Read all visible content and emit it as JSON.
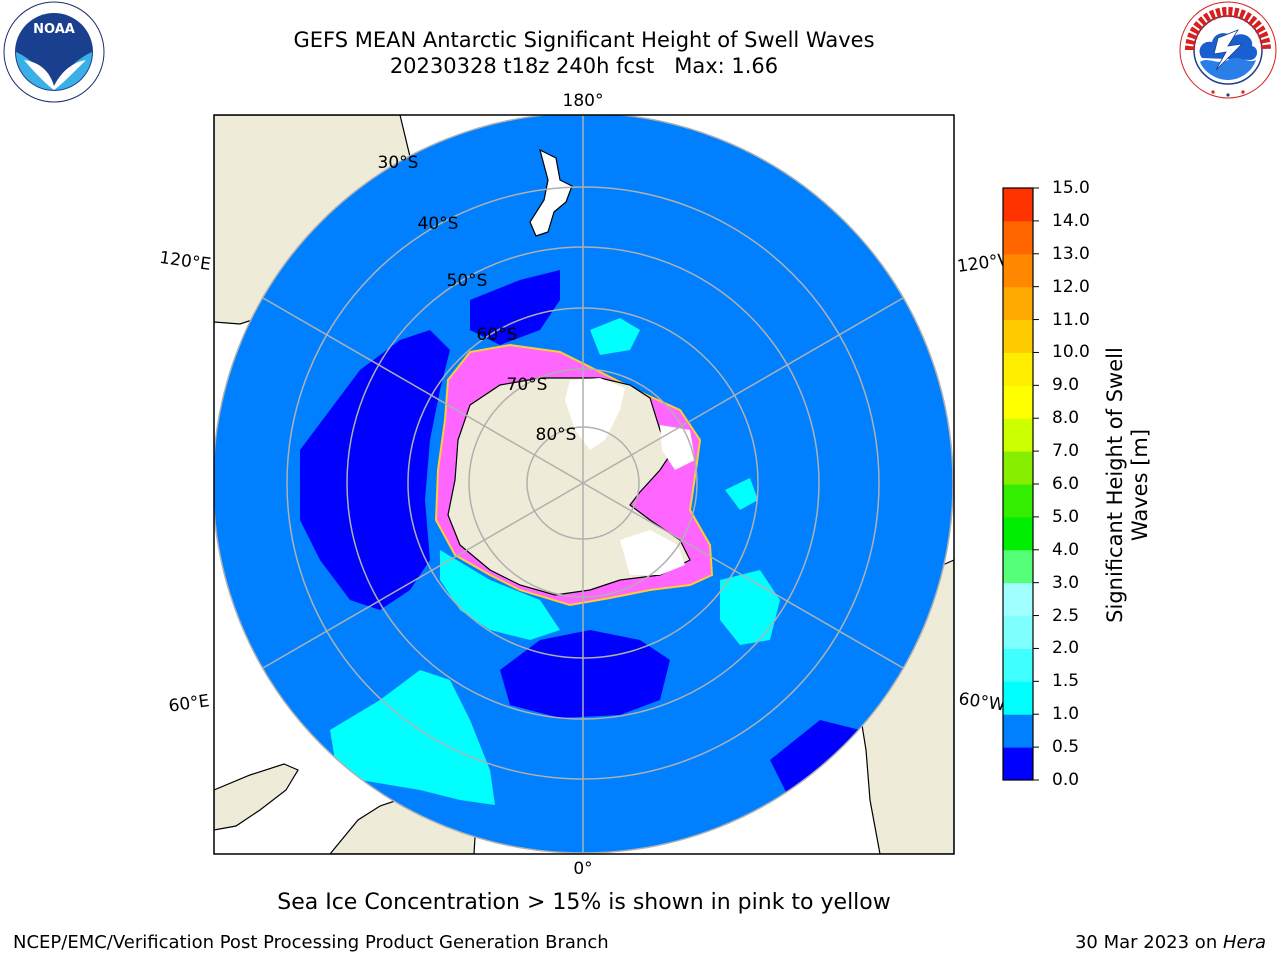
{
  "title": {
    "line1": "GEFS MEAN Antarctic Significant Height of Swell Waves",
    "line2": "20230328 t18z 240h fcst   Max: 1.66"
  },
  "map": {
    "projection": "south polar stereographic",
    "latitude_labels": [
      "30°S",
      "40°S",
      "50°S",
      "60°S",
      "70°S",
      "80°S"
    ],
    "longitude_labels": {
      "top": "180°",
      "left_upper": "120°E",
      "right_upper": "120°W",
      "left_lower": "60°E",
      "right_lower": "60°W",
      "bottom": "0°"
    },
    "colors": {
      "land": "#eeecd8",
      "ocean_0_5_1_0": "#0080ff",
      "ocean_0_0_5": "#0000ff",
      "swell_1_0_1_5": "#00ffff",
      "sea_ice": "#ff66ff",
      "grid": "#b0b0b0"
    }
  },
  "colorbar": {
    "title": "Significant Height of Swell Waves [m]",
    "ticks": [
      "0.0",
      "0.5",
      "1.0",
      "1.5",
      "2.0",
      "2.5",
      "3.0",
      "4.0",
      "5.0",
      "6.0",
      "7.0",
      "8.0",
      "9.0",
      "10.0",
      "11.0",
      "12.0",
      "13.0",
      "14.0",
      "15.0"
    ],
    "colors": [
      "#0000ff",
      "#0080ff",
      "#00ffff",
      "#40ffff",
      "#80ffff",
      "#a0ffff",
      "#55ff77",
      "#00ee00",
      "#33ee00",
      "#88ee00",
      "#ccff00",
      "#ffff00",
      "#ffee00",
      "#ffcc00",
      "#ffaa00",
      "#ff8800",
      "#ff6600",
      "#ff3300",
      "#ff0000"
    ]
  },
  "logos": {
    "left": "NOAA",
    "left_ring_text": "NATIONAL OCEANIC AND ATMOSPHERIC ADMINISTRATION · U.S. DEPARTMENT OF COMMERCE",
    "right_ring_text": "NATIONAL WEATHER SERVICE"
  },
  "caption": "Sea Ice Concentration > 15% is shown in pink to yellow",
  "footer": {
    "left": "NCEP/EMC/Verification Post Processing Product Generation Branch",
    "right_date": "30 Mar 2023 on ",
    "right_system": "Hera"
  }
}
